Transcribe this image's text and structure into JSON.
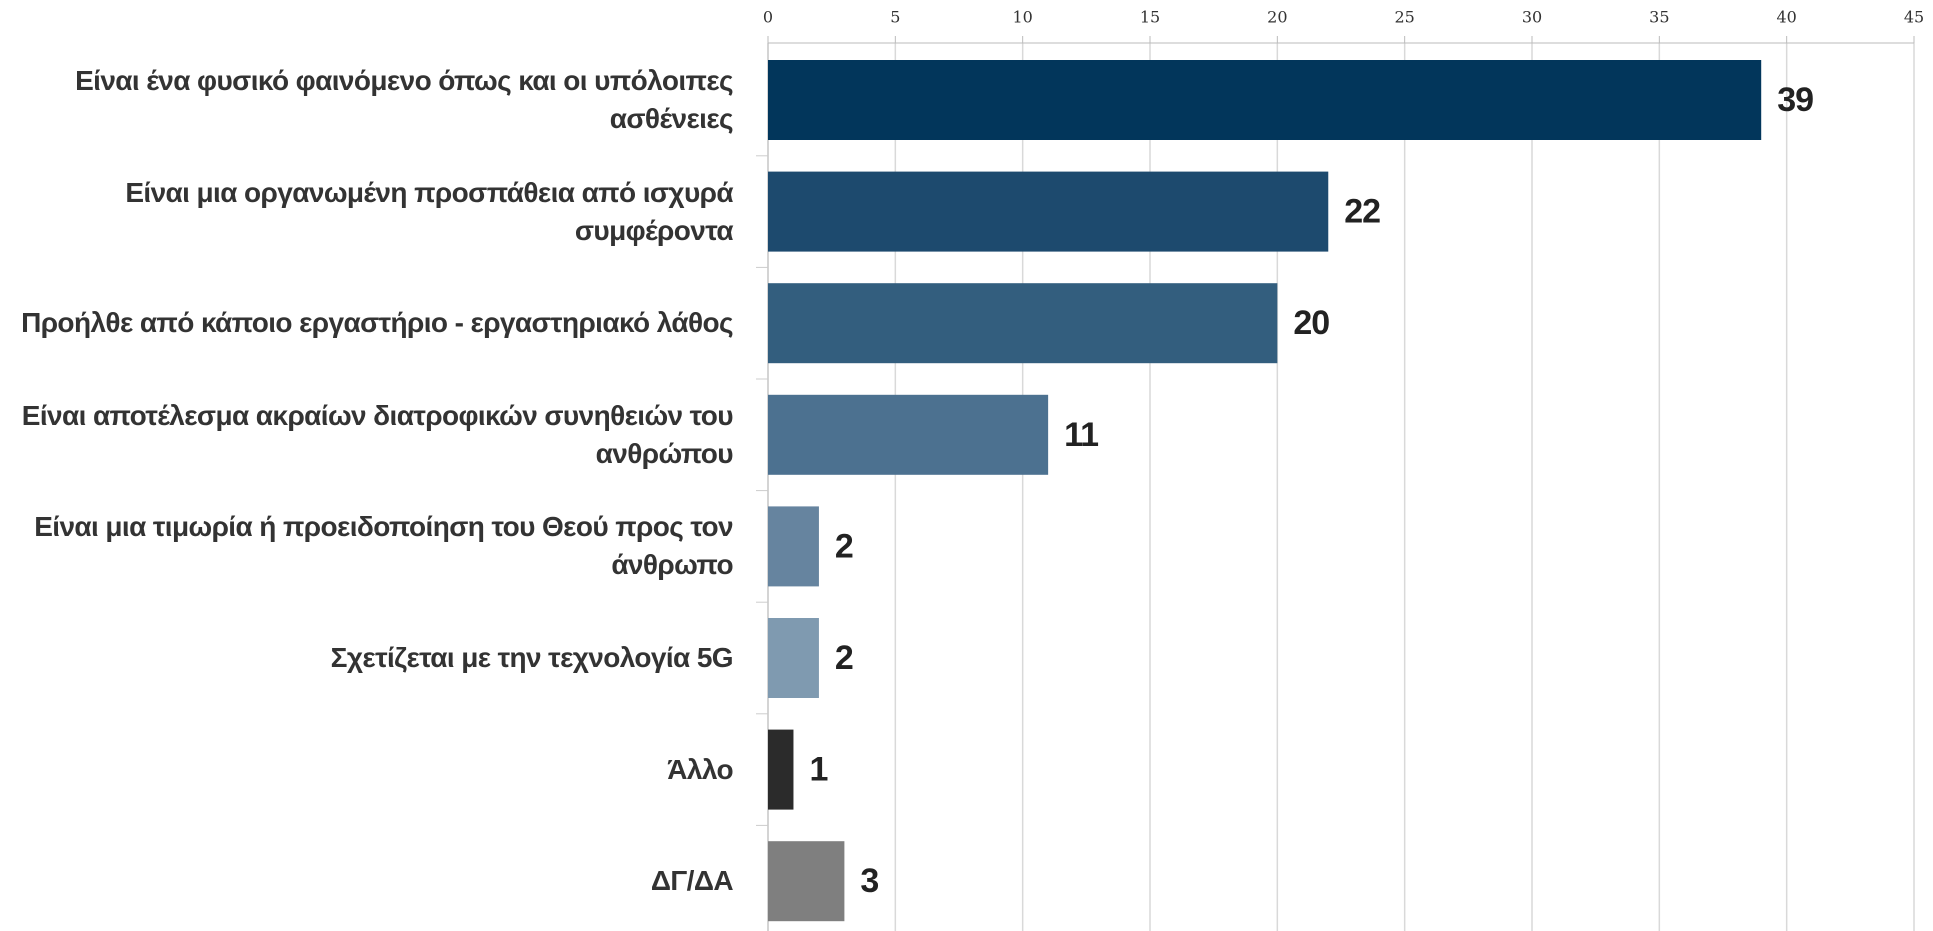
{
  "chart_data": {
    "type": "barh",
    "categories": [
      "Είναι ένα φυσικό φαινόμενο όπως και οι υπόλοιπες ασθένειες",
      "Είναι μια οργανωμένη προσπάθεια από ισχυρά συμφέροντα",
      "Προήλθε από κάποιο εργαστήριο - εργαστηριακό λάθος",
      "Είναι αποτέλεσμα ακραίων διατροφικών συνηθειών του ανθρώπου",
      "Είναι μια τιμωρία ή προειδοποίηση του Θεού προς τον άνθρωπο",
      "Σχετίζεται με την τεχνολογία 5G",
      "Άλλο",
      "ΔΓ/ΔΑ"
    ],
    "values": [
      39,
      22,
      20,
      11,
      2,
      2,
      1,
      3
    ],
    "colors": [
      "#02365b",
      "#1d4a6e",
      "#335e7e",
      "#4c7190",
      "#66849f",
      "#7f9ab0",
      "#2b2b2b",
      "#7f7f7f"
    ],
    "xlim": [
      0,
      45
    ],
    "xticks": [
      0,
      5,
      10,
      15,
      20,
      25,
      30,
      35,
      40,
      45
    ],
    "grid": true
  }
}
